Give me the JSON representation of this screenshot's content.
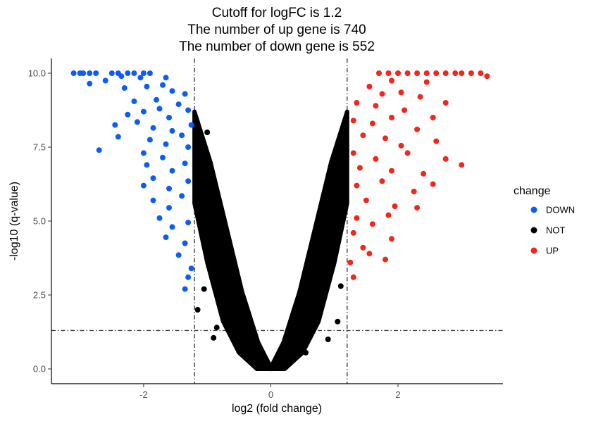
{
  "chart_data": {
    "type": "scatter",
    "title_lines": [
      "Cutoff for logFC is 1.2",
      "The number of up gene is 740",
      "The number of down gene is 552"
    ],
    "xlabel": "log2 (fold change)",
    "ylabel": "-log10 (q-value)",
    "xlim": [
      -3.45,
      3.65
    ],
    "ylim": [
      -0.5,
      10.5
    ],
    "x_ticks": [
      -2,
      0,
      2
    ],
    "x_tick_labels": [
      "-2",
      "0",
      "2"
    ],
    "y_ticks": [
      0,
      2.5,
      5,
      7.5,
      10
    ],
    "y_tick_labels": [
      "0.0",
      "2.5",
      "5.0",
      "7.5",
      "10.0"
    ],
    "cutoff_lines": {
      "logfc_cutoff": 1.2,
      "vertical_x": [
        -1.2,
        1.2
      ],
      "horizontal_y": 1.3,
      "style": "dashdot"
    },
    "legend": {
      "title": "change",
      "placement": "right",
      "items": [
        {
          "label": "DOWN",
          "color": "#0c5cf5"
        },
        {
          "label": "NOT",
          "color": "#000000"
        },
        {
          "label": "UP",
          "color": "#f4251a"
        }
      ]
    },
    "grid": false,
    "series": [
      {
        "name": "DOWN",
        "color": "#0c5cf5",
        "count": 552,
        "points": [
          [
            -3.1,
            10.0
          ],
          [
            -3.0,
            10.0
          ],
          [
            -2.95,
            10.0
          ],
          [
            -2.85,
            10.0
          ],
          [
            -2.75,
            10.0
          ],
          [
            -2.5,
            10.0
          ],
          [
            -2.4,
            10.0
          ],
          [
            -2.25,
            10.0
          ],
          [
            -2.15,
            10.0
          ],
          [
            -2.0,
            10.0
          ],
          [
            -1.9,
            10.0
          ],
          [
            -2.85,
            9.65
          ],
          [
            -2.6,
            9.75
          ],
          [
            -2.35,
            9.9
          ],
          [
            -2.05,
            9.85
          ],
          [
            -1.65,
            9.85
          ],
          [
            -2.3,
            9.5
          ],
          [
            -1.95,
            9.55
          ],
          [
            -1.7,
            9.6
          ],
          [
            -1.55,
            9.4
          ],
          [
            -1.35,
            9.3
          ],
          [
            -2.15,
            9.05
          ],
          [
            -1.8,
            9.1
          ],
          [
            -1.45,
            8.95
          ],
          [
            -2.25,
            8.6
          ],
          [
            -2.0,
            8.7
          ],
          [
            -1.75,
            8.8
          ],
          [
            -1.6,
            8.5
          ],
          [
            -1.3,
            8.75
          ],
          [
            -2.45,
            8.25
          ],
          [
            -2.1,
            8.35
          ],
          [
            -1.85,
            8.15
          ],
          [
            -1.55,
            8.05
          ],
          [
            -1.25,
            8.25
          ],
          [
            -2.4,
            7.85
          ],
          [
            -1.9,
            7.75
          ],
          [
            -1.65,
            7.6
          ],
          [
            -1.4,
            7.9
          ],
          [
            -2.7,
            7.4
          ],
          [
            -2.0,
            7.3
          ],
          [
            -1.7,
            7.15
          ],
          [
            -1.3,
            7.5
          ],
          [
            -1.95,
            6.9
          ],
          [
            -1.55,
            6.7
          ],
          [
            -1.35,
            6.95
          ],
          [
            -2.0,
            6.2
          ],
          [
            -1.85,
            6.45
          ],
          [
            -1.6,
            6.1
          ],
          [
            -1.3,
            6.35
          ],
          [
            -1.85,
            5.7
          ],
          [
            -1.6,
            5.45
          ],
          [
            -1.4,
            5.85
          ],
          [
            -1.75,
            5.1
          ],
          [
            -1.55,
            4.8
          ],
          [
            -1.3,
            4.95
          ],
          [
            -1.65,
            4.45
          ],
          [
            -1.35,
            4.25
          ],
          [
            -1.45,
            3.85
          ],
          [
            -1.25,
            3.4
          ],
          [
            -1.3,
            3.1
          ],
          [
            -1.35,
            2.7
          ]
        ]
      },
      {
        "name": "NOT",
        "color": "#000000",
        "points": [
          [
            0.0,
            0.02
          ],
          [
            -0.08,
            0.15
          ],
          [
            0.08,
            0.12
          ],
          [
            -0.25,
            0.7
          ],
          [
            0.25,
            0.75
          ],
          [
            -0.45,
            1.5
          ],
          [
            0.45,
            1.55
          ],
          [
            -0.6,
            2.5
          ],
          [
            0.6,
            2.45
          ],
          [
            -0.75,
            3.5
          ],
          [
            0.75,
            3.55
          ],
          [
            -0.9,
            4.5
          ],
          [
            0.9,
            4.6
          ],
          [
            -1.0,
            5.5
          ],
          [
            1.0,
            5.45
          ],
          [
            -1.1,
            6.5
          ],
          [
            1.1,
            6.6
          ],
          [
            -1.15,
            7.5
          ],
          [
            1.15,
            7.45
          ],
          [
            -1.18,
            8.25
          ],
          [
            1.18,
            8.0
          ],
          [
            -1.0,
            8.0
          ],
          [
            -1.15,
            2.0
          ],
          [
            1.05,
            1.6
          ],
          [
            -0.85,
            1.4
          ],
          [
            -1.05,
            2.7
          ],
          [
            1.1,
            2.8
          ],
          [
            -0.5,
            0.6
          ],
          [
            0.55,
            0.55
          ],
          [
            -0.9,
            1.05
          ],
          [
            0.9,
            1.0
          ]
        ]
      },
      {
        "name": "UP",
        "color": "#f4251a",
        "count": 740,
        "points": [
          [
            1.7,
            10.0
          ],
          [
            1.85,
            10.0
          ],
          [
            2.0,
            10.0
          ],
          [
            2.15,
            10.0
          ],
          [
            2.3,
            10.0
          ],
          [
            2.45,
            10.0
          ],
          [
            2.6,
            10.0
          ],
          [
            2.75,
            10.0
          ],
          [
            2.9,
            10.0
          ],
          [
            3.0,
            10.0
          ],
          [
            3.15,
            10.0
          ],
          [
            3.3,
            10.0
          ],
          [
            3.4,
            9.9
          ],
          [
            2.45,
            9.7
          ],
          [
            1.9,
            9.75
          ],
          [
            1.55,
            9.55
          ],
          [
            1.75,
            9.3
          ],
          [
            2.05,
            9.35
          ],
          [
            2.35,
            9.2
          ],
          [
            2.75,
            9.0
          ],
          [
            1.35,
            9.0
          ],
          [
            1.65,
            8.9
          ],
          [
            2.1,
            8.75
          ],
          [
            2.55,
            8.5
          ],
          [
            1.3,
            8.4
          ],
          [
            1.6,
            8.3
          ],
          [
            1.9,
            8.5
          ],
          [
            2.3,
            8.1
          ],
          [
            1.45,
            7.9
          ],
          [
            1.8,
            7.8
          ],
          [
            2.05,
            7.55
          ],
          [
            2.6,
            7.7
          ],
          [
            1.3,
            7.3
          ],
          [
            1.65,
            7.1
          ],
          [
            2.15,
            7.3
          ],
          [
            2.75,
            7.1
          ],
          [
            1.4,
            6.8
          ],
          [
            1.9,
            6.7
          ],
          [
            2.4,
            6.6
          ],
          [
            3.0,
            6.9
          ],
          [
            1.35,
            6.2
          ],
          [
            1.75,
            6.35
          ],
          [
            2.25,
            6.0
          ],
          [
            2.55,
            6.25
          ],
          [
            1.5,
            5.7
          ],
          [
            1.95,
            5.5
          ],
          [
            2.3,
            5.45
          ],
          [
            1.35,
            5.1
          ],
          [
            1.6,
            4.9
          ],
          [
            1.85,
            5.2
          ],
          [
            1.9,
            4.4
          ],
          [
            1.3,
            4.6
          ],
          [
            1.45,
            4.1
          ],
          [
            1.55,
            3.9
          ],
          [
            1.25,
            3.6
          ],
          [
            1.8,
            3.7
          ],
          [
            1.3,
            3.1
          ]
        ]
      }
    ]
  }
}
